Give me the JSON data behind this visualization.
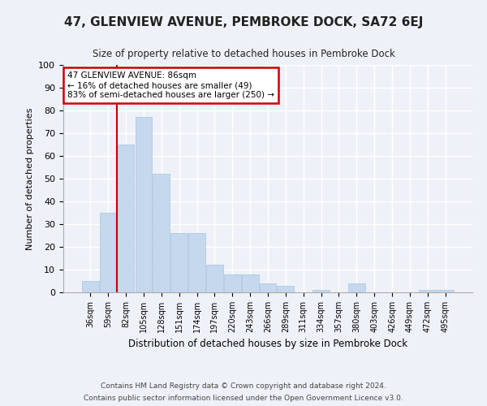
{
  "title": "47, GLENVIEW AVENUE, PEMBROKE DOCK, SA72 6EJ",
  "subtitle": "Size of property relative to detached houses in Pembroke Dock",
  "xlabel": "Distribution of detached houses by size in Pembroke Dock",
  "ylabel": "Number of detached properties",
  "categories": [
    "36sqm",
    "59sqm",
    "82sqm",
    "105sqm",
    "128sqm",
    "151sqm",
    "174sqm",
    "197sqm",
    "220sqm",
    "243sqm",
    "266sqm",
    "289sqm",
    "311sqm",
    "334sqm",
    "357sqm",
    "380sqm",
    "403sqm",
    "426sqm",
    "449sqm",
    "472sqm",
    "495sqm"
  ],
  "values": [
    5,
    35,
    65,
    77,
    52,
    26,
    26,
    12,
    8,
    8,
    4,
    3,
    0,
    1,
    0,
    4,
    0,
    0,
    0,
    1,
    1
  ],
  "bar_color": "#c5d8ed",
  "bar_edge_color": "#a8c4de",
  "annotation_box_text": "47 GLENVIEW AVENUE: 86sqm\n← 16% of detached houses are smaller (49)\n83% of semi-detached houses are larger (250) →",
  "annotation_box_color": "#ffffff",
  "annotation_box_edge_color": "#cc0000",
  "property_line_color": "#cc0000",
  "background_color": "#eef2f8",
  "grid_color": "#ffffff",
  "ylim": [
    0,
    100
  ],
  "footnote1": "Contains HM Land Registry data © Crown copyright and database right 2024.",
  "footnote2": "Contains public sector information licensed under the Open Government Licence v3.0."
}
